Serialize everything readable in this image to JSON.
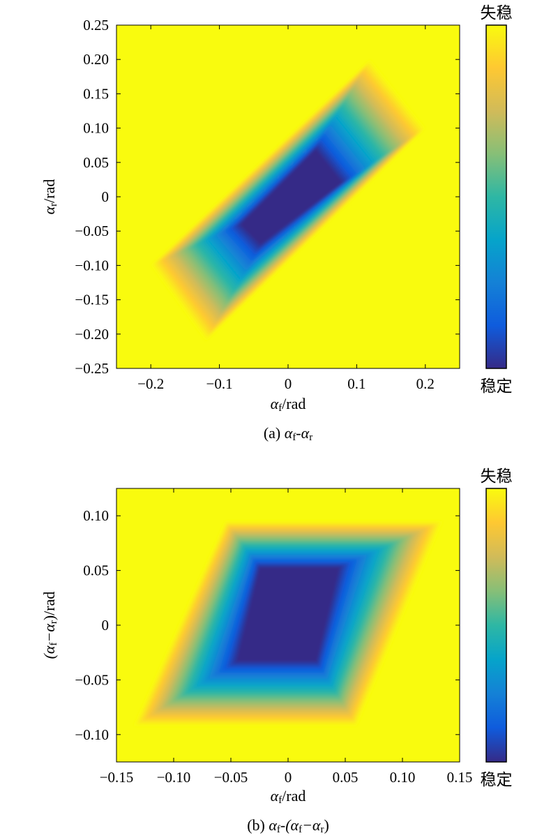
{
  "chart_data": [
    {
      "type": "heatmap",
      "xlabel": {
        "var": "α",
        "sub": "f",
        "unit": "/rad"
      },
      "ylabel": {
        "parts": [
          {
            "t": "α"
          },
          {
            "t": "r",
            "sub": true
          },
          {
            "t": "/rad"
          }
        ]
      },
      "caption": {
        "prefix": "(a) ",
        "parts": [
          {
            "t": "α"
          },
          {
            "t": "f",
            "sub": true
          },
          {
            "t": "-"
          },
          {
            "t": "α"
          },
          {
            "t": "r",
            "sub": true
          }
        ]
      },
      "xlim": [
        -0.25,
        0.25
      ],
      "ylim": [
        -0.25,
        0.25
      ],
      "xticks": [
        "−0.2",
        "−0.1",
        "0",
        "0.1",
        "0.2"
      ],
      "xtick_values": [
        -0.2,
        -0.1,
        0,
        0.1,
        0.2
      ],
      "yticks": [
        "0.25",
        "0.20",
        "0.15",
        "0.10",
        "0.05",
        "0",
        "−0.05",
        "−0.10",
        "−0.15",
        "−0.20",
        "−0.25"
      ],
      "ytick_values": [
        0.25,
        0.2,
        0.15,
        0.1,
        0.05,
        0,
        -0.05,
        -0.1,
        -0.15,
        -0.2,
        -0.25
      ],
      "region": {
        "shape": "parallelogram",
        "coords": "alpha_f,alpha_r",
        "boundary_vertices": [
          [
            -0.2,
            -0.1
          ],
          [
            0.12,
            0.2
          ],
          [
            0.2,
            0.1
          ],
          [
            -0.12,
            -0.21
          ]
        ],
        "core_vertices": [
          [
            -0.07,
            -0.04
          ],
          [
            0.04,
            0.07
          ],
          [
            0.08,
            0.02
          ],
          [
            -0.04,
            -0.07
          ]
        ],
        "value_outside": 1.0,
        "value_core": 0.0
      },
      "colorbar": {
        "top_label": "失稳",
        "bottom_label": "稳定",
        "range": [
          0,
          1
        ]
      }
    },
    {
      "type": "heatmap",
      "xlabel": {
        "var": "α",
        "sub": "f",
        "unit": "/rad"
      },
      "ylabel": {
        "parts": [
          {
            "t": "(α"
          },
          {
            "t": "f",
            "sub": true
          },
          {
            "t": "−α"
          },
          {
            "t": "r",
            "sub": true
          },
          {
            "t": ")/rad"
          }
        ]
      },
      "caption": {
        "prefix": "(b) ",
        "parts": [
          {
            "t": "α"
          },
          {
            "t": "f",
            "sub": true
          },
          {
            "t": "-(α"
          },
          {
            "t": "f",
            "sub": true
          },
          {
            "t": "−α"
          },
          {
            "t": "r",
            "sub": true
          },
          {
            "t": ")"
          }
        ]
      },
      "xlim": [
        -0.15,
        0.15
      ],
      "ylim": [
        -0.125,
        0.125
      ],
      "xticks": [
        "−0.15",
        "−0.10",
        "−0.05",
        "0",
        "0.05",
        "0.10",
        "0.15"
      ],
      "xtick_values": [
        -0.15,
        -0.1,
        -0.05,
        0,
        0.05,
        0.1,
        0.15
      ],
      "yticks": [
        "0.10",
        "0.05",
        "0",
        "−0.05",
        "−0.10"
      ],
      "ytick_values": [
        0.1,
        0.05,
        0,
        -0.05,
        -0.1
      ],
      "region": {
        "shape": "parallelogram",
        "coords": "alpha_f,alpha_f_minus_alpha_r",
        "boundary_vertices": [
          [
            -0.135,
            -0.092
          ],
          [
            -0.055,
            0.095
          ],
          [
            0.135,
            0.095
          ],
          [
            0.06,
            -0.092
          ]
        ],
        "core_vertices": [
          [
            -0.045,
            -0.033
          ],
          [
            -0.025,
            0.053
          ],
          [
            0.045,
            0.053
          ],
          [
            0.025,
            -0.033
          ]
        ],
        "value_outside": 1.0,
        "value_core": 0.0
      },
      "colorbar": {
        "top_label": "失稳",
        "bottom_label": "稳定",
        "range": [
          0,
          1
        ]
      }
    }
  ],
  "colormap": [
    "#352a87",
    "#0f5cdd",
    "#1481d6",
    "#06a4ca",
    "#2eb7a4",
    "#87bf77",
    "#d1bb59",
    "#fec832",
    "#f9fb0e"
  ]
}
